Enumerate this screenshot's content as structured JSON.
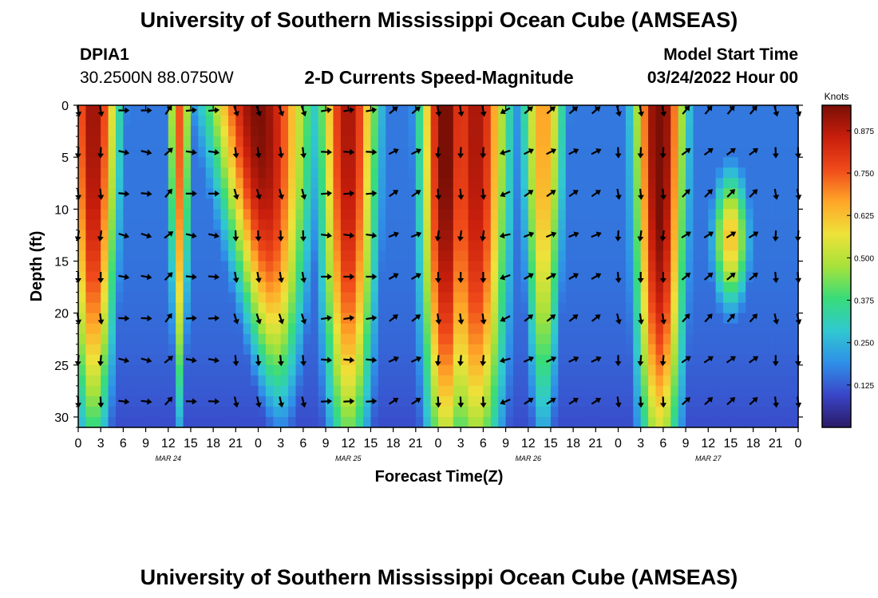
{
  "header": {
    "title": "University of Southern Mississippi Ocean Cube (AMSEAS)",
    "station_id": "DPIA1",
    "station_coords": "30.2500N  88.0750W",
    "subtitle": "2-D Currents Speed-Magnitude",
    "start_label": "Model Start Time",
    "start_value": "03/24/2022 Hour 00"
  },
  "footer": {
    "title": "University of Southern Mississippi Ocean Cube (AMSEAS)"
  },
  "chart_data": {
    "type": "heatmap",
    "title": "2-D Currents Speed-Magnitude",
    "xlabel": "Forecast Time(Z)",
    "ylabel": "Depth (ft)",
    "xlim": [
      0,
      96
    ],
    "ylim": [
      31,
      0
    ],
    "x_tick_values": [
      0,
      3,
      6,
      9,
      12,
      15,
      18,
      21,
      24,
      27,
      30,
      33,
      36,
      39,
      42,
      45,
      48,
      51,
      54,
      57,
      60,
      63,
      66,
      69,
      72,
      75,
      78,
      81,
      84,
      87,
      90,
      93,
      96
    ],
    "x_tick_labels": [
      "0",
      "3",
      "6",
      "9",
      "12",
      "15",
      "18",
      "21",
      "0",
      "3",
      "6",
      "9",
      "12",
      "15",
      "18",
      "21",
      "0",
      "3",
      "6",
      "9",
      "12",
      "15",
      "18",
      "21",
      "0",
      "3",
      "6",
      "9",
      "12",
      "15",
      "18",
      "21",
      "0"
    ],
    "date_labels": [
      {
        "text": "MAR 24",
        "hour": 12
      },
      {
        "text": "MAR 25",
        "hour": 36
      },
      {
        "text": "MAR 26",
        "hour": 60
      },
      {
        "text": "MAR 27",
        "hour": 84
      }
    ],
    "y_ticks": [
      0,
      5,
      10,
      15,
      20,
      25,
      30
    ],
    "y_tick_labels": [
      "0",
      "5",
      "10",
      "15",
      "20",
      "25",
      "30"
    ],
    "colorbar": {
      "unit": "Knots",
      "min": 0,
      "max": 0.95,
      "ticks": [
        0.125,
        0.25,
        0.375,
        0.5,
        0.625,
        0.75,
        0.875
      ],
      "tick_labels": [
        "0.125",
        "0.250",
        "0.375",
        "0.500",
        "0.625",
        "0.750",
        "0.875"
      ]
    },
    "speed_bands": [
      {
        "peak_hour": 2,
        "half_width_hours": 3.5,
        "peak_knots": 0.92,
        "surface_bias": 0.4
      },
      {
        "peak_hour": 13.5,
        "half_width_hours": 1.5,
        "peak_knots": 0.75,
        "surface_bias": 0.6
      },
      {
        "peak_hour": 24,
        "half_width_hours": 7,
        "peak_knots": 0.95,
        "surface_bias": 0.8,
        "tilt": 3
      },
      {
        "peak_hour": 36,
        "half_width_hours": 4,
        "peak_knots": 0.9,
        "surface_bias": 0.3
      },
      {
        "peak_hour": 49,
        "half_width_hours": 3.5,
        "peak_knots": 0.98,
        "surface_bias": 0.2
      },
      {
        "peak_hour": 53,
        "half_width_hours": 4.5,
        "peak_knots": 0.9,
        "surface_bias": 0.2
      },
      {
        "peak_hour": 62,
        "half_width_hours": 3,
        "peak_knots": 0.68,
        "surface_bias": 0.5
      },
      {
        "peak_hour": 77.5,
        "half_width_hours": 3.5,
        "peak_knots": 0.99,
        "surface_bias": 0.2
      },
      {
        "peak_hour": 87,
        "half_width_hours": 2.5,
        "peak_knots": 0.65,
        "center_depth_ft": 13
      }
    ],
    "arrow_depths_ft": [
      0.5,
      4.5,
      8.5,
      12.5,
      16.5,
      20.5,
      24.5,
      28.5
    ],
    "arrow_direction_bands": [
      {
        "from_hour": 0,
        "to_hour": 4,
        "direction_deg": 180
      },
      {
        "from_hour": 4,
        "to_hour": 10,
        "direction_deg": 100
      },
      {
        "from_hour": 10,
        "to_hour": 13,
        "direction_deg": 45
      },
      {
        "from_hour": 13,
        "to_hour": 19,
        "direction_deg": 95
      },
      {
        "from_hour": 19,
        "to_hour": 32,
        "direction_deg": 170
      },
      {
        "from_hour": 32,
        "to_hour": 42,
        "direction_deg": 90
      },
      {
        "from_hour": 42,
        "to_hour": 47,
        "direction_deg": 60
      },
      {
        "from_hour": 47,
        "to_hour": 57,
        "direction_deg": 180
      },
      {
        "from_hour": 57,
        "to_hour": 59,
        "direction_deg": 250
      },
      {
        "from_hour": 59,
        "to_hour": 70,
        "direction_deg": 60
      },
      {
        "from_hour": 70,
        "to_hour": 74,
        "direction_deg": 175
      },
      {
        "from_hour": 74,
        "to_hour": 81,
        "direction_deg": 180
      },
      {
        "from_hour": 81,
        "to_hour": 93,
        "direction_deg": 50
      },
      {
        "from_hour": 93,
        "to_hour": 96.5,
        "direction_deg": 175
      }
    ],
    "colors": {
      "ramp": [
        "#2a1a66",
        "#3a45c8",
        "#2f8fe8",
        "#30c8d0",
        "#38dc7a",
        "#a6e23a",
        "#eee23a",
        "#ffa628",
        "#f04a1a",
        "#c81e0c",
        "#7a0f06"
      ]
    }
  }
}
